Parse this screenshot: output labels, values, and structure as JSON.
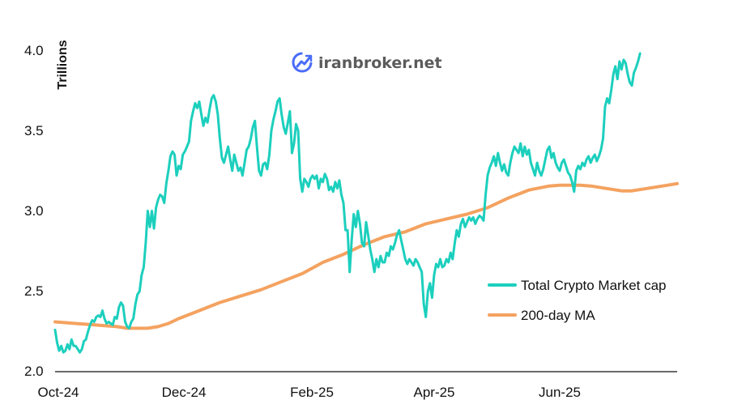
{
  "watermark": {
    "text": "iranbroker.net",
    "icon": "rising-chart-icon",
    "icon_color": "#4a6cf7"
  },
  "chart_data": {
    "type": "line",
    "ylabel": "Trillions",
    "xlabel": "",
    "ylim": [
      2.0,
      4.0
    ],
    "yticks": [
      "2.0",
      "2.5",
      "3.0",
      "3.5",
      "4.0"
    ],
    "x_ticks": [
      "Oct-24",
      "Dec-24",
      "Feb-25",
      "Apr-25",
      "Jun-25"
    ],
    "x_tick_days": [
      0,
      61,
      123,
      182,
      243
    ],
    "x_range": [
      0,
      302
    ],
    "legend_position": "right-middle",
    "series": [
      {
        "name": "Total Crypto Market cap",
        "color": "#1ccfbd",
        "points": [
          [
            0,
            2.26
          ],
          [
            1,
            2.18
          ],
          [
            2,
            2.13
          ],
          [
            3,
            2.16
          ],
          [
            4,
            2.12
          ],
          [
            5,
            2.13
          ],
          [
            6,
            2.17
          ],
          [
            7,
            2.14
          ],
          [
            8,
            2.2
          ],
          [
            9,
            2.16
          ],
          [
            10,
            2.16
          ],
          [
            11,
            2.14
          ],
          [
            12,
            2.12
          ],
          [
            13,
            2.14
          ],
          [
            14,
            2.19
          ],
          [
            15,
            2.2
          ],
          [
            16,
            2.25
          ],
          [
            17,
            2.29
          ],
          [
            18,
            2.32
          ],
          [
            19,
            2.31
          ],
          [
            20,
            2.34
          ],
          [
            21,
            2.35
          ],
          [
            22,
            2.34
          ],
          [
            23,
            2.38
          ],
          [
            24,
            2.33
          ],
          [
            25,
            2.3
          ],
          [
            26,
            2.31
          ],
          [
            27,
            2.3
          ],
          [
            28,
            2.29
          ],
          [
            29,
            2.34
          ],
          [
            30,
            2.33
          ],
          [
            31,
            2.4
          ],
          [
            32,
            2.43
          ],
          [
            33,
            2.41
          ],
          [
            34,
            2.31
          ],
          [
            35,
            2.28
          ],
          [
            36,
            2.27
          ],
          [
            37,
            2.31
          ],
          [
            38,
            2.33
          ],
          [
            39,
            2.42
          ],
          [
            40,
            2.48
          ],
          [
            41,
            2.5
          ],
          [
            42,
            2.6
          ],
          [
            43,
            2.65
          ],
          [
            44,
            2.8
          ],
          [
            45,
            3.0
          ],
          [
            46,
            2.9
          ],
          [
            47,
            3.0
          ],
          [
            48,
            2.89
          ],
          [
            49,
            3.02
          ],
          [
            50,
            3.07
          ],
          [
            51,
            3.1
          ],
          [
            52,
            3.09
          ],
          [
            53,
            3.05
          ],
          [
            54,
            3.17
          ],
          [
            55,
            3.25
          ],
          [
            56,
            3.34
          ],
          [
            57,
            3.37
          ],
          [
            58,
            3.35
          ],
          [
            59,
            3.22
          ],
          [
            60,
            3.28
          ],
          [
            61,
            3.26
          ],
          [
            62,
            3.35
          ],
          [
            63,
            3.37
          ],
          [
            64,
            3.4
          ],
          [
            65,
            3.43
          ],
          [
            66,
            3.56
          ],
          [
            67,
            3.62
          ],
          [
            68,
            3.67
          ],
          [
            69,
            3.64
          ],
          [
            70,
            3.68
          ],
          [
            71,
            3.6
          ],
          [
            72,
            3.53
          ],
          [
            73,
            3.58
          ],
          [
            74,
            3.55
          ],
          [
            75,
            3.63
          ],
          [
            76,
            3.7
          ],
          [
            77,
            3.72
          ],
          [
            78,
            3.68
          ],
          [
            79,
            3.6
          ],
          [
            80,
            3.45
          ],
          [
            81,
            3.33
          ],
          [
            82,
            3.3
          ],
          [
            83,
            3.35
          ],
          [
            84,
            3.4
          ],
          [
            85,
            3.32
          ],
          [
            86,
            3.25
          ],
          [
            87,
            3.35
          ],
          [
            88,
            3.3
          ],
          [
            89,
            3.25
          ],
          [
            90,
            3.27
          ],
          [
            91,
            3.22
          ],
          [
            92,
            3.3
          ],
          [
            93,
            3.38
          ],
          [
            94,
            3.4
          ],
          [
            95,
            3.45
          ],
          [
            96,
            3.52
          ],
          [
            97,
            3.56
          ],
          [
            98,
            3.4
          ],
          [
            99,
            3.25
          ],
          [
            100,
            3.22
          ],
          [
            101,
            3.29
          ],
          [
            102,
            3.3
          ],
          [
            103,
            3.26
          ],
          [
            104,
            3.35
          ],
          [
            105,
            3.5
          ],
          [
            106,
            3.57
          ],
          [
            107,
            3.62
          ],
          [
            108,
            3.68
          ],
          [
            109,
            3.7
          ],
          [
            110,
            3.6
          ],
          [
            111,
            3.52
          ],
          [
            112,
            3.48
          ],
          [
            113,
            3.55
          ],
          [
            114,
            3.62
          ],
          [
            115,
            3.36
          ],
          [
            116,
            3.42
          ],
          [
            117,
            3.54
          ],
          [
            118,
            3.5
          ],
          [
            119,
            3.2
          ],
          [
            120,
            3.12
          ],
          [
            121,
            3.2
          ],
          [
            122,
            3.18
          ],
          [
            123,
            3.15
          ],
          [
            124,
            3.2
          ],
          [
            125,
            3.22
          ],
          [
            126,
            3.2
          ],
          [
            127,
            3.22
          ],
          [
            128,
            3.14
          ],
          [
            129,
            3.2
          ],
          [
            130,
            3.18
          ],
          [
            131,
            3.23
          ],
          [
            132,
            3.2
          ],
          [
            133,
            3.13
          ],
          [
            134,
            3.15
          ],
          [
            135,
            3.12
          ],
          [
            136,
            3.18
          ],
          [
            137,
            3.14
          ],
          [
            138,
            3.19
          ],
          [
            139,
            3.1
          ],
          [
            140,
            3.05
          ],
          [
            141,
            2.88
          ],
          [
            142,
            2.88
          ],
          [
            143,
            2.62
          ],
          [
            144,
            2.82
          ],
          [
            145,
            2.98
          ],
          [
            146,
            2.9
          ],
          [
            147,
            3.0
          ],
          [
            148,
            2.92
          ],
          [
            149,
            2.8
          ],
          [
            150,
            2.78
          ],
          [
            151,
            2.93
          ],
          [
            152,
            2.85
          ],
          [
            153,
            2.76
          ],
          [
            154,
            2.7
          ],
          [
            155,
            2.62
          ],
          [
            156,
            2.7
          ],
          [
            157,
            2.65
          ],
          [
            158,
            2.72
          ],
          [
            159,
            2.68
          ],
          [
            160,
            2.68
          ],
          [
            161,
            2.74
          ],
          [
            162,
            2.72
          ],
          [
            163,
            2.78
          ],
          [
            164,
            2.76
          ],
          [
            165,
            2.8
          ],
          [
            166,
            2.85
          ],
          [
            167,
            2.88
          ],
          [
            168,
            2.82
          ],
          [
            169,
            2.76
          ],
          [
            170,
            2.7
          ],
          [
            171,
            2.67
          ],
          [
            172,
            2.7
          ],
          [
            173,
            2.68
          ],
          [
            174,
            2.66
          ],
          [
            175,
            2.7
          ],
          [
            176,
            2.68
          ],
          [
            177,
            2.65
          ],
          [
            178,
            2.62
          ],
          [
            179,
            2.42
          ],
          [
            180,
            2.34
          ],
          [
            181,
            2.5
          ],
          [
            182,
            2.55
          ],
          [
            183,
            2.46
          ],
          [
            184,
            2.6
          ],
          [
            185,
            2.67
          ],
          [
            186,
            2.65
          ],
          [
            187,
            2.7
          ],
          [
            188,
            2.65
          ],
          [
            189,
            2.66
          ],
          [
            190,
            2.7
          ],
          [
            191,
            2.68
          ],
          [
            192,
            2.74
          ],
          [
            193,
            2.7
          ],
          [
            194,
            2.8
          ],
          [
            195,
            2.88
          ],
          [
            196,
            2.84
          ],
          [
            197,
            2.92
          ],
          [
            198,
            2.95
          ],
          [
            199,
            2.9
          ],
          [
            200,
            2.93
          ],
          [
            201,
            2.96
          ],
          [
            202,
            2.94
          ],
          [
            203,
            2.96
          ],
          [
            204,
            2.92
          ],
          [
            205,
            2.95
          ],
          [
            206,
            2.97
          ],
          [
            207,
            2.96
          ],
          [
            208,
            2.94
          ],
          [
            209,
            3.1
          ],
          [
            210,
            3.22
          ],
          [
            211,
            3.27
          ],
          [
            212,
            3.3
          ],
          [
            213,
            3.34
          ],
          [
            214,
            3.28
          ],
          [
            215,
            3.36
          ],
          [
            216,
            3.3
          ],
          [
            217,
            3.25
          ],
          [
            218,
            3.29
          ],
          [
            219,
            3.24
          ],
          [
            220,
            3.22
          ],
          [
            221,
            3.3
          ],
          [
            222,
            3.36
          ],
          [
            223,
            3.4
          ],
          [
            224,
            3.38
          ],
          [
            225,
            3.36
          ],
          [
            226,
            3.42
          ],
          [
            227,
            3.34
          ],
          [
            228,
            3.4
          ],
          [
            229,
            3.35
          ],
          [
            230,
            3.38
          ],
          [
            231,
            3.3
          ],
          [
            232,
            3.26
          ],
          [
            233,
            3.22
          ],
          [
            234,
            3.3
          ],
          [
            235,
            3.25
          ],
          [
            236,
            3.22
          ],
          [
            237,
            3.26
          ],
          [
            238,
            3.32
          ],
          [
            239,
            3.38
          ],
          [
            240,
            3.4
          ],
          [
            241,
            3.33
          ],
          [
            242,
            3.36
          ],
          [
            243,
            3.3
          ],
          [
            244,
            3.27
          ],
          [
            245,
            3.25
          ],
          [
            246,
            3.3
          ],
          [
            247,
            3.32
          ],
          [
            248,
            3.28
          ],
          [
            249,
            3.24
          ],
          [
            250,
            3.22
          ],
          [
            251,
            3.18
          ],
          [
            252,
            3.12
          ],
          [
            253,
            3.25
          ],
          [
            254,
            3.28
          ],
          [
            255,
            3.26
          ],
          [
            256,
            3.3
          ],
          [
            257,
            3.28
          ],
          [
            258,
            3.32
          ],
          [
            259,
            3.34
          ],
          [
            260,
            3.3
          ],
          [
            261,
            3.33
          ],
          [
            262,
            3.35
          ],
          [
            263,
            3.31
          ],
          [
            264,
            3.34
          ],
          [
            265,
            3.38
          ],
          [
            266,
            3.45
          ],
          [
            267,
            3.65
          ],
          [
            268,
            3.7
          ],
          [
            269,
            3.67
          ],
          [
            270,
            3.75
          ],
          [
            271,
            3.85
          ],
          [
            272,
            3.9
          ],
          [
            273,
            3.82
          ],
          [
            274,
            3.93
          ],
          [
            275,
            3.88
          ],
          [
            276,
            3.94
          ],
          [
            277,
            3.92
          ],
          [
            278,
            3.85
          ],
          [
            279,
            3.8
          ],
          [
            280,
            3.78
          ],
          [
            281,
            3.86
          ],
          [
            282,
            3.89
          ],
          [
            283,
            3.93
          ],
          [
            284,
            3.98
          ]
        ]
      },
      {
        "name": "200-day MA",
        "color": "#f4a260",
        "points": [
          [
            0,
            2.31
          ],
          [
            10,
            2.3
          ],
          [
            20,
            2.29
          ],
          [
            30,
            2.28
          ],
          [
            35,
            2.27
          ],
          [
            45,
            2.27
          ],
          [
            50,
            2.28
          ],
          [
            55,
            2.3
          ],
          [
            60,
            2.33
          ],
          [
            70,
            2.38
          ],
          [
            80,
            2.43
          ],
          [
            90,
            2.47
          ],
          [
            100,
            2.51
          ],
          [
            110,
            2.56
          ],
          [
            120,
            2.61
          ],
          [
            130,
            2.68
          ],
          [
            140,
            2.73
          ],
          [
            150,
            2.79
          ],
          [
            160,
            2.84
          ],
          [
            170,
            2.87
          ],
          [
            180,
            2.92
          ],
          [
            190,
            2.95
          ],
          [
            200,
            2.98
          ],
          [
            210,
            3.02
          ],
          [
            220,
            3.08
          ],
          [
            230,
            3.13
          ],
          [
            240,
            3.155
          ],
          [
            245,
            3.16
          ],
          [
            250,
            3.16
          ],
          [
            255,
            3.16
          ],
          [
            260,
            3.155
          ],
          [
            265,
            3.145
          ],
          [
            270,
            3.135
          ],
          [
            275,
            3.125
          ],
          [
            280,
            3.125
          ],
          [
            285,
            3.135
          ],
          [
            290,
            3.145
          ],
          [
            295,
            3.155
          ],
          [
            302,
            3.17
          ]
        ]
      }
    ]
  }
}
